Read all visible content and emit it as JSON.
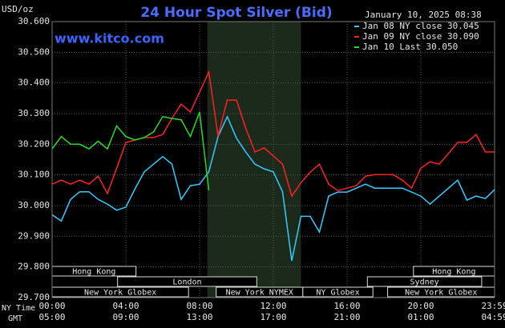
{
  "chart_data": {
    "type": "line",
    "title": "24 Hour Spot Silver (Bid)",
    "date": "January 10, 2025 08:38",
    "site": "www.kitco.com",
    "y_axis_label": "USD/oz",
    "x_axis_label": "NY Time",
    "x2_axis_label": "GMT",
    "x": [
      0,
      0.5,
      1,
      1.5,
      2,
      2.5,
      3,
      3.5,
      4,
      4.5,
      5,
      5.5,
      6,
      6.5,
      7,
      7.5,
      8,
      8.5,
      9,
      9.5,
      10,
      10.5,
      11,
      11.5,
      12,
      12.5,
      13,
      13.5,
      14,
      14.5,
      15,
      15.5,
      16,
      16.5,
      17,
      17.5,
      18,
      18.5,
      19,
      19.5,
      20,
      20.5,
      21,
      21.5,
      22,
      22.5,
      23,
      23.5,
      24
    ],
    "xlim": [
      0,
      24
    ],
    "xticks": [
      {
        "value": 0,
        "label": "00:00"
      },
      {
        "value": 4,
        "label": "04:00"
      },
      {
        "value": 8,
        "label": "08:00"
      },
      {
        "value": 12,
        "label": "12:00"
      },
      {
        "value": 16,
        "label": "16:00"
      },
      {
        "value": 20,
        "label": "20:00"
      },
      {
        "value": 24,
        "label": "23:59"
      }
    ],
    "gmt_labels": [
      "05:00",
      "09:00",
      "13:00",
      "17:00",
      "21:00",
      "01:00",
      "04:59"
    ],
    "ylim": [
      29.7,
      30.6
    ],
    "yticks": [
      {
        "value": 29.7,
        "label": "29.700"
      },
      {
        "value": 29.8,
        "label": "29.800"
      },
      {
        "value": 29.9,
        "label": "29.900"
      },
      {
        "value": 30.0,
        "label": "30.000"
      },
      {
        "value": 30.1,
        "label": "30.100"
      },
      {
        "value": 30.2,
        "label": "30.200"
      },
      {
        "value": 30.3,
        "label": "30.300"
      },
      {
        "value": 30.4,
        "label": "30.400"
      },
      {
        "value": 30.5,
        "label": "30.500"
      },
      {
        "value": 30.6,
        "label": "30.600"
      }
    ],
    "grid": true,
    "shaded_range": [
      8.42,
      13.5
    ],
    "sessions": [
      [
        {
          "name": "Hong Kong",
          "start": 0,
          "end": 4.55
        },
        {
          "name": "Hong Kong",
          "start": 19.6,
          "end": 24
        }
      ],
      [
        {
          "name": "London",
          "start": 3.55,
          "end": 11.1
        },
        {
          "name": "Sydney",
          "start": 17.1,
          "end": 23.3
        }
      ],
      [
        {
          "name": "New York Globex",
          "start": 0,
          "end": 7.4
        },
        {
          "name": "New York NYMEX",
          "start": 8.9,
          "end": 13.6
        },
        {
          "name": "NY Globex",
          "start": 13.6,
          "end": 17.4
        },
        {
          "name": "New York Globex",
          "start": 18.2,
          "end": 24
        }
      ]
    ],
    "series": [
      {
        "name": "Jan 08 NY close 30.045",
        "color": "#33ccff",
        "values": [
          29.97,
          29.95,
          30.02,
          30.045,
          30.045,
          30.02,
          30.005,
          29.985,
          29.995,
          30.055,
          30.11,
          30.135,
          30.16,
          30.135,
          30.02,
          30.065,
          30.07,
          30.11,
          30.225,
          30.29,
          30.22,
          30.175,
          30.135,
          30.12,
          30.11,
          30.045,
          29.82,
          29.965,
          29.965,
          29.914,
          30.031,
          30.044,
          30.044,
          30.057,
          30.07,
          30.057,
          30.057,
          30.057,
          30.057,
          30.044,
          30.031,
          30.005,
          30.031,
          30.057,
          30.083,
          30.018,
          30.031,
          30.023,
          30.052
        ]
      },
      {
        "name": "Jan 09 NY close 30.090",
        "color": "#ff2020",
        "values": [
          30.07,
          30.083,
          30.07,
          30.083,
          30.07,
          30.096,
          30.039,
          30.122,
          30.206,
          30.214,
          30.222,
          30.222,
          30.232,
          30.284,
          30.331,
          30.305,
          30.37,
          30.436,
          30.227,
          30.344,
          30.344,
          30.253,
          30.175,
          30.188,
          30.162,
          30.135,
          30.031,
          30.075,
          30.109,
          30.135,
          30.07,
          30.049,
          30.057,
          30.065,
          30.096,
          30.101,
          30.101,
          30.101,
          30.083,
          30.057,
          30.122,
          30.143,
          30.135,
          30.17,
          30.206,
          30.206,
          30.232,
          30.175,
          30.175
        ]
      },
      {
        "name": "Jan 10 Last 30.050",
        "color": "#20e020",
        "values": [
          30.185,
          30.225,
          30.2,
          30.2,
          30.185,
          30.21,
          30.185,
          30.26,
          30.225,
          30.214,
          30.222,
          30.24,
          30.29,
          30.284,
          30.28,
          30.225,
          30.305,
          30.05,
          null,
          null,
          null,
          null,
          null,
          null,
          null,
          null,
          null,
          null,
          null,
          null,
          null,
          null,
          null,
          null,
          null,
          null,
          null,
          null,
          null,
          null,
          null,
          null,
          null,
          null,
          null,
          null,
          null,
          null,
          null
        ]
      }
    ]
  }
}
